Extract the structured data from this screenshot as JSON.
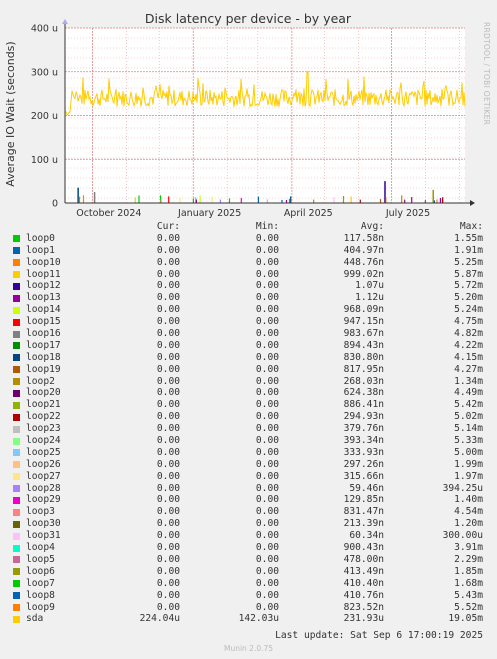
{
  "chart_data": {
    "type": "line",
    "title": "Disk latency per device - by year",
    "ylabel": "Average IO Wait (seconds)",
    "y_ticks": [
      "0",
      "100 u",
      "200 u",
      "300 u",
      "400 u"
    ],
    "y_tick_values": [
      0,
      0.0001,
      0.0002,
      0.0003,
      0.0004
    ],
    "ylim": [
      0,
      0.0004
    ],
    "x_ticks": [
      "October 2024",
      "January 2025",
      "April 2025",
      "July 2025"
    ],
    "x_range": [
      "2024-09-06",
      "2025-09-06"
    ],
    "x_tick_dates": [
      "2024-10-01",
      "2025-01-01",
      "2025-04-01",
      "2025-07-01"
    ],
    "grid": true,
    "vertical_text": "RRDTOOL / TOBI OETIKER",
    "series_sda": {
      "name": "sda",
      "range_low": 0.0002,
      "range_high": 0.00028,
      "typical": 0.00024,
      "peak_value": 0.0003,
      "peak_date": "2025-04-15"
    },
    "loop_spikes": [
      {
        "date": "2024-09-18",
        "value": 3.5e-05,
        "device": "loop18"
      },
      {
        "date": "2024-10-03",
        "value": 2.5e-05,
        "device": "loop16"
      },
      {
        "date": "2025-06-25",
        "value": 5e-05,
        "device": "loop12"
      },
      {
        "date": "2025-08-08",
        "value": 3e-05,
        "device": "loop6"
      }
    ]
  },
  "legend_header": {
    "cur": "Cur:",
    "min": "Min:",
    "avg": "Avg:",
    "max": "Max:"
  },
  "legend": [
    {
      "name": "loop0",
      "color": "#00cc00",
      "cur": "0.00",
      "min": "0.00",
      "avg": "117.58n",
      "max": "1.55m"
    },
    {
      "name": "loop1",
      "color": "#0066b3",
      "cur": "0.00",
      "min": "0.00",
      "avg": "404.97n",
      "max": "1.91m"
    },
    {
      "name": "loop10",
      "color": "#ff8000",
      "cur": "0.00",
      "min": "0.00",
      "avg": "448.76n",
      "max": "5.25m"
    },
    {
      "name": "loop11",
      "color": "#ffcc00",
      "cur": "0.00",
      "min": "0.00",
      "avg": "999.02n",
      "max": "5.87m"
    },
    {
      "name": "loop12",
      "color": "#330099",
      "cur": "0.00",
      "min": "0.00",
      "avg": "1.07u",
      "max": "5.72m"
    },
    {
      "name": "loop13",
      "color": "#990099",
      "cur": "0.00",
      "min": "0.00",
      "avg": "1.12u",
      "max": "5.20m"
    },
    {
      "name": "loop14",
      "color": "#ccff00",
      "cur": "0.00",
      "min": "0.00",
      "avg": "968.09n",
      "max": "5.24m"
    },
    {
      "name": "loop15",
      "color": "#ff0000",
      "cur": "0.00",
      "min": "0.00",
      "avg": "947.15n",
      "max": "4.75m"
    },
    {
      "name": "loop16",
      "color": "#808080",
      "cur": "0.00",
      "min": "0.00",
      "avg": "983.67n",
      "max": "4.82m"
    },
    {
      "name": "loop17",
      "color": "#008f00",
      "cur": "0.00",
      "min": "0.00",
      "avg": "894.43n",
      "max": "4.22m"
    },
    {
      "name": "loop18",
      "color": "#00487d",
      "cur": "0.00",
      "min": "0.00",
      "avg": "830.80n",
      "max": "4.15m"
    },
    {
      "name": "loop19",
      "color": "#b35a00",
      "cur": "0.00",
      "min": "0.00",
      "avg": "817.95n",
      "max": "4.27m"
    },
    {
      "name": "loop2",
      "color": "#b38f00",
      "cur": "0.00",
      "min": "0.00",
      "avg": "268.03n",
      "max": "1.34m"
    },
    {
      "name": "loop20",
      "color": "#6b006b",
      "cur": "0.00",
      "min": "0.00",
      "avg": "624.38n",
      "max": "4.49m"
    },
    {
      "name": "loop21",
      "color": "#8fb300",
      "cur": "0.00",
      "min": "0.00",
      "avg": "886.41n",
      "max": "5.42m"
    },
    {
      "name": "loop22",
      "color": "#b30000",
      "cur": "0.00",
      "min": "0.00",
      "avg": "294.93n",
      "max": "5.02m"
    },
    {
      "name": "loop23",
      "color": "#bebebe",
      "cur": "0.00",
      "min": "0.00",
      "avg": "379.76n",
      "max": "5.14m"
    },
    {
      "name": "loop24",
      "color": "#80ff80",
      "cur": "0.00",
      "min": "0.00",
      "avg": "393.34n",
      "max": "5.33m"
    },
    {
      "name": "loop25",
      "color": "#80c9ff",
      "cur": "0.00",
      "min": "0.00",
      "avg": "333.93n",
      "max": "5.00m"
    },
    {
      "name": "loop26",
      "color": "#ffc080",
      "cur": "0.00",
      "min": "0.00",
      "avg": "297.26n",
      "max": "1.99m"
    },
    {
      "name": "loop27",
      "color": "#ffe680",
      "cur": "0.00",
      "min": "0.00",
      "avg": "315.66n",
      "max": "1.97m"
    },
    {
      "name": "loop28",
      "color": "#aa80ff",
      "cur": "0.00",
      "min": "0.00",
      "avg": "59.46n",
      "max": "394.25u"
    },
    {
      "name": "loop29",
      "color": "#ee00cc",
      "cur": "0.00",
      "min": "0.00",
      "avg": "129.85n",
      "max": "1.40m"
    },
    {
      "name": "loop3",
      "color": "#ff8080",
      "cur": "0.00",
      "min": "0.00",
      "avg": "831.47n",
      "max": "4.54m"
    },
    {
      "name": "loop30",
      "color": "#666600",
      "cur": "0.00",
      "min": "0.00",
      "avg": "213.39n",
      "max": "1.20m"
    },
    {
      "name": "loop31",
      "color": "#ffbfff",
      "cur": "0.00",
      "min": "0.00",
      "avg": "60.34n",
      "max": "300.00u"
    },
    {
      "name": "loop4",
      "color": "#00ffcc",
      "cur": "0.00",
      "min": "0.00",
      "avg": "900.43n",
      "max": "3.91m"
    },
    {
      "name": "loop5",
      "color": "#cc6699",
      "cur": "0.00",
      "min": "0.00",
      "avg": "478.00n",
      "max": "2.29m"
    },
    {
      "name": "loop6",
      "color": "#999900",
      "cur": "0.00",
      "min": "0.00",
      "avg": "413.49n",
      "max": "1.85m"
    },
    {
      "name": "loop7",
      "color": "#00cc00",
      "cur": "0.00",
      "min": "0.00",
      "avg": "410.40n",
      "max": "1.68m"
    },
    {
      "name": "loop8",
      "color": "#0066b3",
      "cur": "0.00",
      "min": "0.00",
      "avg": "410.76n",
      "max": "5.43m"
    },
    {
      "name": "loop9",
      "color": "#ff8000",
      "cur": "0.00",
      "min": "0.00",
      "avg": "823.52n",
      "max": "5.52m"
    },
    {
      "name": "sda",
      "color": "#ffcc00",
      "cur": "224.04u",
      "min": "142.03u",
      "avg": "231.93u",
      "max": "19.05m"
    }
  ],
  "footer": "Last update: Sat Sep  6 17:00:19 2025",
  "munin_version": "Munin 2.0.75"
}
